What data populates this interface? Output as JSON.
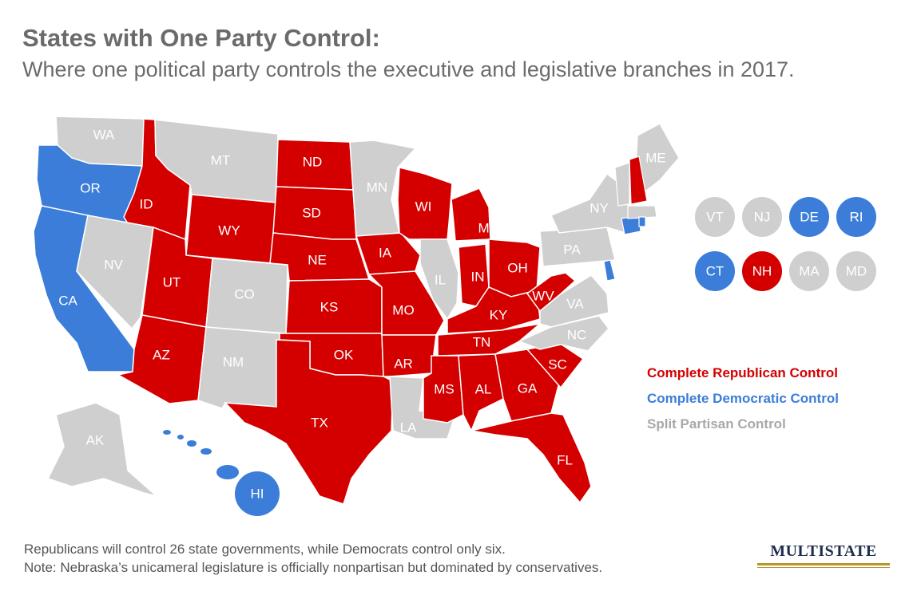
{
  "title": "States with One Party Control:",
  "subtitle": "Where one political party controls the executive and legislative branches in 2017.",
  "colors": {
    "republican": "#d40000",
    "democratic": "#3b7dd8",
    "split": "#cfcfcf"
  },
  "legend": {
    "republican": "Complete Republican Control",
    "democratic": "Complete Democratic Control",
    "split": "Split Partisan Control"
  },
  "states": [
    {
      "code": "WA",
      "control": "split"
    },
    {
      "code": "OR",
      "control": "democratic"
    },
    {
      "code": "CA",
      "control": "democratic"
    },
    {
      "code": "ID",
      "control": "republican"
    },
    {
      "code": "NV",
      "control": "split"
    },
    {
      "code": "MT",
      "control": "split"
    },
    {
      "code": "WY",
      "control": "republican"
    },
    {
      "code": "UT",
      "control": "republican"
    },
    {
      "code": "AZ",
      "control": "republican"
    },
    {
      "code": "CO",
      "control": "split"
    },
    {
      "code": "NM",
      "control": "split"
    },
    {
      "code": "ND",
      "control": "republican"
    },
    {
      "code": "SD",
      "control": "republican"
    },
    {
      "code": "NE",
      "control": "republican"
    },
    {
      "code": "KS",
      "control": "republican"
    },
    {
      "code": "OK",
      "control": "republican"
    },
    {
      "code": "TX",
      "control": "republican"
    },
    {
      "code": "MN",
      "control": "split"
    },
    {
      "code": "IA",
      "control": "republican"
    },
    {
      "code": "MO",
      "control": "republican"
    },
    {
      "code": "AR",
      "control": "republican"
    },
    {
      "code": "LA",
      "control": "split"
    },
    {
      "code": "WI",
      "control": "republican"
    },
    {
      "code": "IL",
      "control": "split"
    },
    {
      "code": "MI",
      "control": "republican"
    },
    {
      "code": "IN",
      "control": "republican"
    },
    {
      "code": "OH",
      "control": "republican"
    },
    {
      "code": "KY",
      "control": "republican"
    },
    {
      "code": "TN",
      "control": "republican"
    },
    {
      "code": "MS",
      "control": "republican"
    },
    {
      "code": "AL",
      "control": "republican"
    },
    {
      "code": "GA",
      "control": "republican"
    },
    {
      "code": "FL",
      "control": "republican"
    },
    {
      "code": "SC",
      "control": "republican"
    },
    {
      "code": "NC",
      "control": "split"
    },
    {
      "code": "VA",
      "control": "split"
    },
    {
      "code": "WV",
      "control": "republican"
    },
    {
      "code": "PA",
      "control": "split"
    },
    {
      "code": "NY",
      "control": "split"
    },
    {
      "code": "ME",
      "control": "split"
    },
    {
      "code": "AK",
      "control": "split"
    },
    {
      "code": "HI",
      "control": "democratic"
    }
  ],
  "small_states": [
    {
      "code": "VT",
      "control": "split"
    },
    {
      "code": "NJ",
      "control": "split"
    },
    {
      "code": "DE",
      "control": "democratic"
    },
    {
      "code": "RI",
      "control": "democratic"
    },
    {
      "code": "CT",
      "control": "democratic"
    },
    {
      "code": "NH",
      "control": "republican"
    },
    {
      "code": "MA",
      "control": "split"
    },
    {
      "code": "MD",
      "control": "split"
    }
  ],
  "notes": {
    "line1": "Republicans will control 26 state governments, while Democrats control only six.",
    "line2": "Note: Nebraska’s unicameral legislature is officially nonpartisan but dominated by conservatives."
  },
  "logo": "MULTISTATE"
}
